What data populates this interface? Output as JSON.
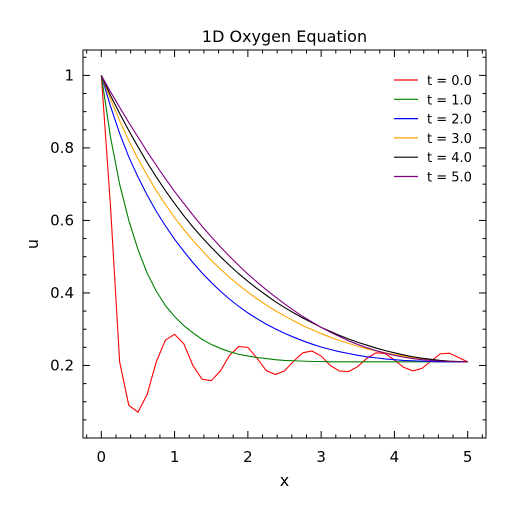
{
  "chart_data": {
    "type": "line",
    "title": "1D Oxygen Equation",
    "xlabel": "x",
    "ylabel": "u",
    "xlim": [
      -0.25,
      5.25
    ],
    "ylim": [
      0.0,
      1.07
    ],
    "xticks": [
      0,
      1,
      2,
      3,
      4,
      5
    ],
    "xtick_labels": [
      "0",
      "1",
      "2",
      "3",
      "4",
      "5"
    ],
    "yticks": [
      0.2,
      0.4,
      0.6,
      0.8,
      1.0
    ],
    "ytick_labels": [
      "0.2",
      "0.4",
      "0.6",
      "0.8",
      "1"
    ],
    "grid": false,
    "legend_position": "top-right",
    "x": [
      0.0,
      0.125,
      0.25,
      0.375,
      0.5,
      0.625,
      0.75,
      0.875,
      1.0,
      1.125,
      1.25,
      1.375,
      1.5,
      1.625,
      1.75,
      1.875,
      2.0,
      2.125,
      2.25,
      2.375,
      2.5,
      2.625,
      2.75,
      2.875,
      3.0,
      3.125,
      3.25,
      3.375,
      3.5,
      3.625,
      3.75,
      3.875,
      4.0,
      4.125,
      4.25,
      4.375,
      4.5,
      4.625,
      4.75,
      4.875,
      5.0
    ],
    "series": [
      {
        "name": "t = 0.0",
        "color": "#ff0000",
        "values": [
          1.0,
          0.64,
          0.21,
          0.09,
          0.071,
          0.12,
          0.21,
          0.27,
          0.286,
          0.26,
          0.2,
          0.162,
          0.158,
          0.185,
          0.228,
          0.252,
          0.25,
          0.22,
          0.186,
          0.175,
          0.185,
          0.212,
          0.235,
          0.24,
          0.226,
          0.2,
          0.185,
          0.183,
          0.197,
          0.22,
          0.235,
          0.233,
          0.215,
          0.195,
          0.185,
          0.192,
          0.212,
          0.232,
          0.234,
          0.222,
          0.21
        ]
      },
      {
        "name": "t = 1.0",
        "color": "#008000",
        "values": [
          1.0,
          0.83,
          0.7,
          0.6,
          0.52,
          0.455,
          0.405,
          0.365,
          0.335,
          0.31,
          0.29,
          0.272,
          0.258,
          0.247,
          0.238,
          0.231,
          0.226,
          0.222,
          0.219,
          0.216,
          0.214,
          0.213,
          0.212,
          0.211,
          0.211,
          0.21,
          0.21,
          0.21,
          0.21,
          0.21,
          0.21,
          0.21,
          0.21,
          0.21,
          0.21,
          0.21,
          0.21,
          0.21,
          0.21,
          0.21,
          0.21
        ]
      },
      {
        "name": "t = 2.0",
        "color": "#0000ff",
        "values": [
          1.0,
          0.915,
          0.84,
          0.775,
          0.72,
          0.67,
          0.625,
          0.585,
          0.548,
          0.515,
          0.484,
          0.455,
          0.429,
          0.405,
          0.383,
          0.363,
          0.345,
          0.329,
          0.314,
          0.301,
          0.289,
          0.278,
          0.268,
          0.259,
          0.251,
          0.244,
          0.238,
          0.233,
          0.228,
          0.224,
          0.221,
          0.218,
          0.216,
          0.214,
          0.213,
          0.212,
          0.211,
          0.21,
          0.21,
          0.21,
          0.21
        ]
      },
      {
        "name": "t = 3.0",
        "color": "#ffa500",
        "values": [
          1.0,
          0.935,
          0.875,
          0.82,
          0.77,
          0.725,
          0.682,
          0.644,
          0.608,
          0.575,
          0.545,
          0.517,
          0.49,
          0.466,
          0.443,
          0.422,
          0.402,
          0.384,
          0.367,
          0.351,
          0.337,
          0.323,
          0.31,
          0.299,
          0.288,
          0.278,
          0.269,
          0.261,
          0.253,
          0.246,
          0.24,
          0.235,
          0.23,
          0.226,
          0.222,
          0.219,
          0.216,
          0.214,
          0.212,
          0.211,
          0.21
        ]
      },
      {
        "name": "t = 4.0",
        "color": "#000000",
        "values": [
          1.0,
          0.945,
          0.895,
          0.848,
          0.803,
          0.76,
          0.72,
          0.682,
          0.647,
          0.613,
          0.582,
          0.553,
          0.526,
          0.5,
          0.476,
          0.453,
          0.432,
          0.412,
          0.394,
          0.376,
          0.36,
          0.345,
          0.331,
          0.318,
          0.305,
          0.294,
          0.283,
          0.273,
          0.264,
          0.256,
          0.248,
          0.241,
          0.235,
          0.229,
          0.224,
          0.22,
          0.217,
          0.214,
          0.212,
          0.211,
          0.21
        ]
      },
      {
        "name": "t = 5.0",
        "color": "#800080",
        "values": [
          1.0,
          0.955,
          0.912,
          0.87,
          0.83,
          0.79,
          0.752,
          0.715,
          0.68,
          0.647,
          0.615,
          0.584,
          0.555,
          0.527,
          0.501,
          0.476,
          0.452,
          0.43,
          0.409,
          0.389,
          0.37,
          0.352,
          0.335,
          0.32,
          0.305,
          0.292,
          0.28,
          0.268,
          0.258,
          0.249,
          0.241,
          0.234,
          0.228,
          0.223,
          0.219,
          0.216,
          0.214,
          0.212,
          0.211,
          0.21,
          0.21
        ]
      }
    ]
  }
}
